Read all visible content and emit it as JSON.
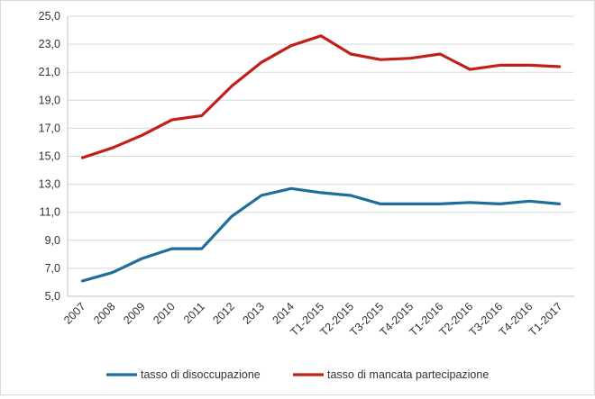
{
  "chart_data": {
    "type": "line",
    "title": "",
    "xlabel": "",
    "ylabel": "",
    "ylim": [
      5.0,
      25.0
    ],
    "yticks": [
      "5,0",
      "7,0",
      "9,0",
      "11,0",
      "13,0",
      "15,0",
      "17,0",
      "19,0",
      "21,0",
      "23,0",
      "25,0"
    ],
    "ytick_values": [
      5,
      7,
      9,
      11,
      13,
      15,
      17,
      19,
      21,
      23,
      25
    ],
    "grid": "horizontal",
    "legend_position": "bottom",
    "categories": [
      "2007",
      "2008",
      "2009",
      "2010",
      "2011",
      "2012",
      "2013",
      "2014",
      "T1-2015",
      "T2-2015",
      "T3-2015",
      "T4-2015",
      "T1-2016",
      "T2-2016",
      "T3-2016",
      "T4-2016",
      "T1-2017"
    ],
    "series": [
      {
        "name": "tasso di disoccupazione",
        "color": "#1f6e99",
        "values": [
          6.1,
          6.7,
          7.7,
          8.4,
          8.4,
          10.7,
          12.2,
          12.7,
          12.4,
          12.2,
          11.6,
          11.6,
          11.6,
          11.7,
          11.6,
          11.8,
          11.6
        ]
      },
      {
        "name": "tasso di mancata partecipazione",
        "color": "#c0201a",
        "values": [
          14.9,
          15.6,
          16.5,
          17.6,
          17.9,
          20.0,
          21.7,
          22.9,
          23.6,
          22.3,
          21.9,
          22.0,
          22.3,
          21.2,
          21.5,
          21.5,
          21.4
        ]
      }
    ]
  }
}
